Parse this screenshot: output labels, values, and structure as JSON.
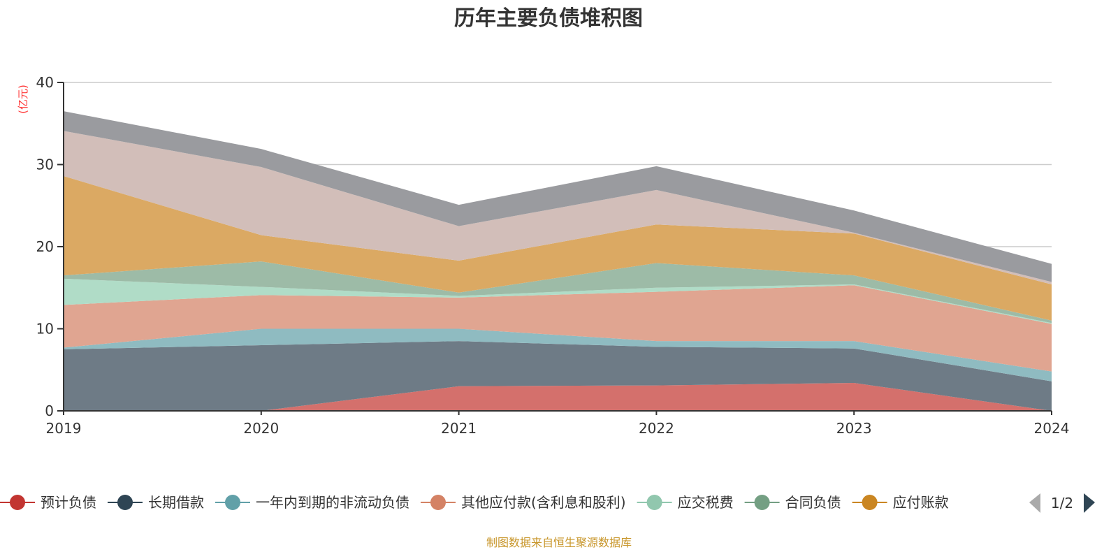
{
  "chart_data": {
    "type": "area",
    "stacked": true,
    "title": "历年主要负债堆积图",
    "ylabel": "(亿元)",
    "xlabel": "",
    "ylim": [
      0,
      40
    ],
    "yticks": [
      0,
      10,
      20,
      30,
      40
    ],
    "grid": true,
    "categories": [
      "2019",
      "2020",
      "2021",
      "2022",
      "2023",
      "2024"
    ],
    "series": [
      {
        "name": "预计负债",
        "color": "#c23531",
        "fill": "#d4706c",
        "values": [
          0,
          0,
          3.0,
          3.1,
          3.4,
          0
        ]
      },
      {
        "name": "长期借款",
        "color": "#2f4554",
        "fill": "#6e7b86",
        "values": [
          7.5,
          8.0,
          5.5,
          4.7,
          4.2,
          3.6
        ]
      },
      {
        "name": "一年内到期的非流动负债",
        "color": "#61a0a8",
        "fill": "#8fbbc1",
        "values": [
          0.2,
          2.0,
          1.5,
          0.7,
          0.9,
          1.2
        ]
      },
      {
        "name": "其他应付款(含利息和股利)",
        "color": "#d48265",
        "fill": "#e0a591",
        "values": [
          5.2,
          4.1,
          3.8,
          6.0,
          6.8,
          5.8
        ]
      },
      {
        "name": "应交税费",
        "color": "#91c7ae",
        "fill": "#b0dcc7",
        "values": [
          3.2,
          1.0,
          0.2,
          0.5,
          0.1,
          0.1
        ]
      },
      {
        "name": "合同负债",
        "color": "#749f83",
        "fill": "#9dbba7",
        "values": [
          0.4,
          3.1,
          0.4,
          3.0,
          1.1,
          0.3
        ]
      },
      {
        "name": "应付账款",
        "color": "#ca8622",
        "fill": "#dba963",
        "values": [
          12.1,
          3.2,
          3.9,
          4.7,
          5.1,
          4.4
        ]
      },
      {
        "name": "",
        "color": "#bda29a",
        "fill": "#d2beb9",
        "values": [
          5.5,
          8.3,
          4.2,
          4.2,
          0.1,
          0.3
        ]
      },
      {
        "name": "",
        "color": "#6e7074",
        "fill": "#9a9b9f",
        "values": [
          2.4,
          2.2,
          2.6,
          2.9,
          2.7,
          2.2
        ]
      }
    ],
    "legend": {
      "placement": "bottom",
      "page": "1/2",
      "visible_count": 7
    }
  },
  "source": "制图数据来自恒生聚源数据库"
}
